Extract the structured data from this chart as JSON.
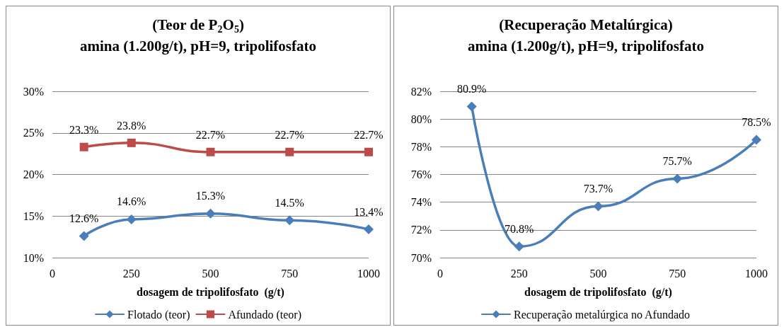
{
  "chart_data": [
    {
      "type": "line",
      "title": "(Teor de P$_{2}$O$_{5}$)\namina (1.200g/t), pH=9, tripolifosfato",
      "xlabel": "dosagem de tripolifosfato  (g/t)",
      "x": [
        100,
        250,
        500,
        750,
        1000
      ],
      "series": [
        {
          "name": "Flotado (teor)",
          "color": "#4a7ebb",
          "marker": "diamond",
          "values": [
            12.6,
            14.6,
            15.3,
            14.5,
            13.4
          ],
          "value_labels": [
            "12.6%",
            "14.6%",
            "15.3%",
            "14.5%",
            "13.4%"
          ]
        },
        {
          "name": "Afundado (teor)",
          "color": "#be4b48",
          "marker": "square",
          "values": [
            23.3,
            23.8,
            22.7,
            22.7,
            22.7
          ],
          "value_labels": [
            "23.3%",
            "23.8%",
            "22.7%",
            "22.7%",
            "22.7%"
          ]
        }
      ],
      "xlim": [
        0,
        1000
      ],
      "xticks": [
        0,
        250,
        500,
        750,
        1000
      ],
      "ylim": [
        10,
        30
      ],
      "yticks": [
        {
          "value": 10,
          "label": "10%"
        },
        {
          "value": 15,
          "label": "15%"
        },
        {
          "value": 20,
          "label": "20%"
        },
        {
          "value": 25,
          "label": "25%"
        },
        {
          "value": 30,
          "label": "30%"
        }
      ],
      "grid": "y",
      "legend": "bottom"
    },
    {
      "type": "line",
      "title": "(Recuperação Metalúrgica)\namina (1.200g/t), pH=9, tripolifosfato",
      "xlabel": "dosagem de tripolifosfato  (g/t)",
      "x": [
        100,
        250,
        500,
        750,
        1000
      ],
      "series": [
        {
          "name": "Recuperação metalúrgica no Afundado",
          "color": "#4a7ebb",
          "marker": "diamond",
          "values": [
            80.9,
            70.8,
            73.7,
            75.7,
            78.5
          ],
          "value_labels": [
            "80.9%",
            "70.8%",
            "73.7%",
            "75.7%",
            "78.5%"
          ]
        }
      ],
      "xlim": [
        0,
        1000
      ],
      "xticks": [
        0,
        250,
        500,
        750,
        1000
      ],
      "ylim": [
        70,
        82
      ],
      "yticks": [
        {
          "value": 70,
          "label": "70%"
        },
        {
          "value": 72,
          "label": "72%"
        },
        {
          "value": 74,
          "label": "74%"
        },
        {
          "value": 76,
          "label": "76%"
        },
        {
          "value": 78,
          "label": "78%"
        },
        {
          "value": 80,
          "label": "80%"
        },
        {
          "value": 82,
          "label": "82%"
        }
      ],
      "grid": "y",
      "legend": "bottom"
    }
  ]
}
